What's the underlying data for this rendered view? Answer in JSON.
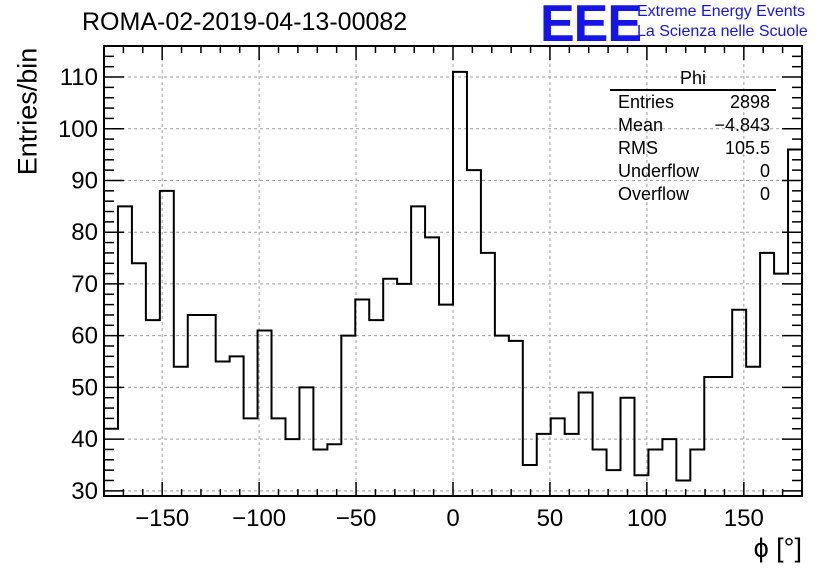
{
  "header": {
    "title": "ROMA-02-2019-04-13-00082",
    "logo_text": "EEE",
    "logo_line1": "Extreme Energy Events",
    "logo_line2": "La Scienza nelle Scuole"
  },
  "stats_box": {
    "title": "Phi",
    "rows": [
      {
        "label": "Entries",
        "value": "2898"
      },
      {
        "label": "Mean",
        "value": "−4.843"
      },
      {
        "label": "RMS",
        "value": "105.5"
      },
      {
        "label": "Underflow",
        "value": "0"
      },
      {
        "label": "Overflow",
        "value": "0"
      }
    ]
  },
  "colors": {
    "line": "#000000",
    "grid": "#a0a0a0",
    "logo": "#1515e6"
  },
  "chart_data": {
    "type": "histogram",
    "title": "ROMA-02-2019-04-13-00082",
    "xlabel": "ϕ [°]",
    "ylabel": "Entries/bin",
    "xlim": [
      -180,
      180
    ],
    "ylim": [
      29,
      116
    ],
    "bin_width": 7.2,
    "bin_edges_start": -180,
    "values": [
      42,
      85,
      74,
      63,
      88,
      54,
      64,
      64,
      55,
      56,
      44,
      61,
      44,
      40,
      50,
      38,
      39,
      60,
      67,
      63,
      71,
      70,
      85,
      79,
      66,
      111,
      92,
      76,
      60,
      59,
      35,
      41,
      44,
      41,
      49,
      38,
      34,
      48,
      33,
      38,
      40,
      32,
      38,
      52,
      52,
      65,
      54,
      76,
      72,
      96
    ],
    "xticks": [
      -150,
      -100,
      -50,
      0,
      50,
      100,
      150
    ],
    "xtick_labels": [
      "−150",
      "−100",
      "−50",
      "0",
      "50",
      "100",
      "150"
    ],
    "yticks": [
      30,
      40,
      50,
      60,
      70,
      80,
      90,
      100,
      110
    ],
    "ytick_labels": [
      "30",
      "40",
      "50",
      "60",
      "70",
      "80",
      "90",
      "100",
      "110"
    ],
    "grid": true,
    "legend": "stats box top-right"
  }
}
